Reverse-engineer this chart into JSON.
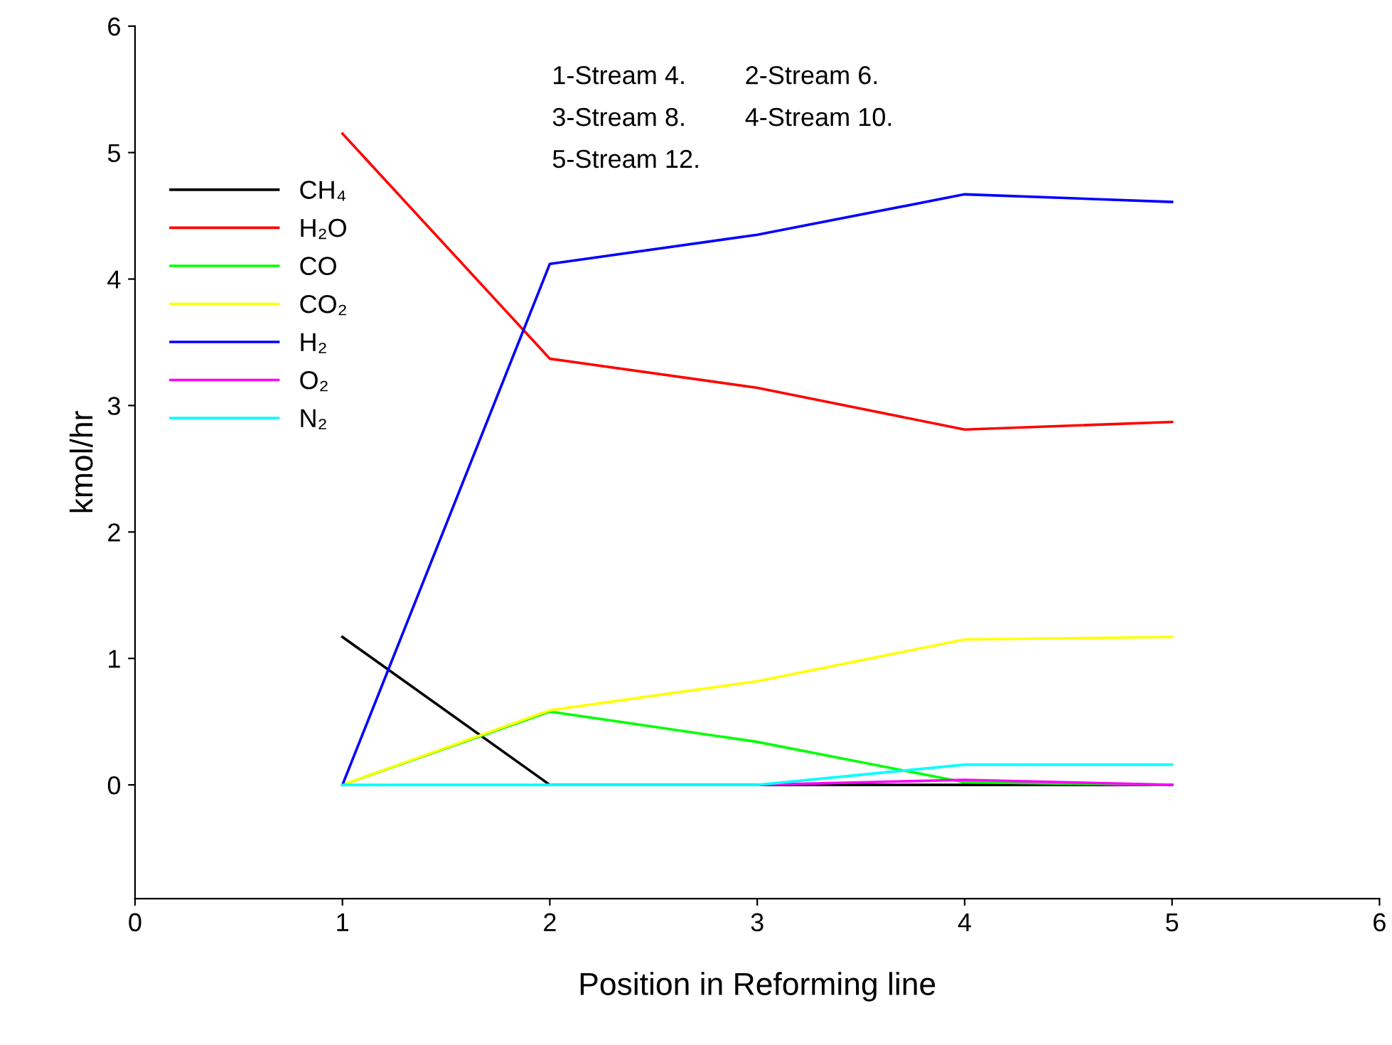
{
  "chart_data": {
    "type": "line",
    "xlabel": "Position in Reforming line",
    "ylabel": "kmol/hr",
    "x": [
      1,
      2,
      3,
      4,
      5
    ],
    "series": [
      {
        "name": "CH₄",
        "color": "#000000",
        "values": [
          1.17,
          0,
          0,
          0,
          0
        ]
      },
      {
        "name": "H₂O",
        "color": "#ff0000",
        "values": [
          5.15,
          3.37,
          3.14,
          2.81,
          2.87
        ]
      },
      {
        "name": "CO",
        "color": "#00ff00",
        "values": [
          0,
          0.58,
          0.34,
          0.02,
          0
        ]
      },
      {
        "name": "CO₂",
        "color": "#ffff00",
        "values": [
          0,
          0.59,
          0.82,
          1.15,
          1.17
        ]
      },
      {
        "name": "H₂",
        "color": "#0000ff",
        "values": [
          0,
          4.12,
          4.35,
          4.67,
          4.61
        ]
      },
      {
        "name": "O₂",
        "color": "#ff00ff",
        "values": [
          null,
          0,
          0,
          0.04,
          0
        ]
      },
      {
        "name": "N₂",
        "color": "#00ffff",
        "values": [
          0,
          0,
          0,
          0.16,
          0.16
        ]
      }
    ],
    "xlim": [
      0,
      6
    ],
    "xticks": [
      0,
      1,
      2,
      3,
      4,
      5,
      6
    ],
    "ylim": [
      -0.9,
      6
    ],
    "yticks": [
      0,
      1,
      2,
      3,
      4,
      5,
      6
    ],
    "grid": false,
    "legend": "top left",
    "marker": "none",
    "line_style": "solid",
    "annotations": [
      "1-Stream 4.",
      "2-Stream 6.",
      "3-Stream 8.",
      "4-Stream 10.",
      "5-Stream 12."
    ]
  }
}
